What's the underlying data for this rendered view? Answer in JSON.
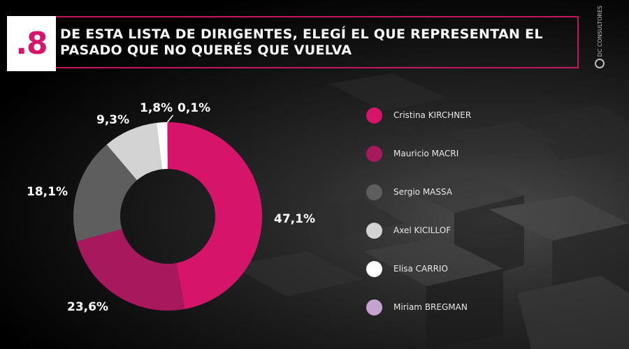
{
  "header": {
    "number": ".8",
    "title": "DE ESTA LISTA DE DIRIGENTES, ELEGÍ EL QUE REPRESENTAN EL\nPASADO QUE NO QUERÉS QUE VUELVA"
  },
  "brand": {
    "name": "DC CONSULTORES"
  },
  "chart_data": {
    "type": "pie",
    "donut": true,
    "categories": [
      "Cristina KIRCHNER",
      "Mauricio MACRI",
      "Sergio MASSA",
      "Axel KICILLOF",
      "Elisa CARRIO",
      "Miriam BREGMAN"
    ],
    "values": [
      47.1,
      23.6,
      18.1,
      9.3,
      1.8,
      0.1
    ],
    "labels": [
      "47,1%",
      "23,6%",
      "18,1%",
      "9,3%",
      "1,8%",
      "0,1%"
    ],
    "colors": [
      "#d6156a",
      "#a8185c",
      "#5e5e5e",
      "#d3d3d3",
      "#ffffff",
      "#c5a3cf"
    ],
    "legend_position": "right"
  }
}
